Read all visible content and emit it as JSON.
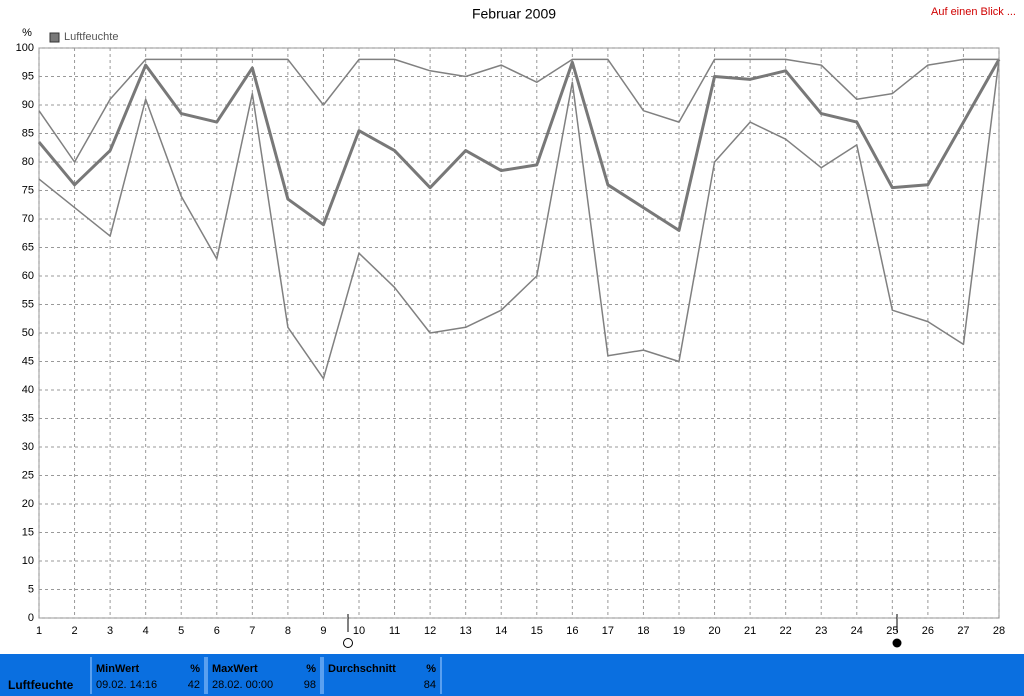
{
  "chart_data": {
    "type": "line",
    "title": "Februar 2009",
    "ylabel": "%",
    "x": [
      1,
      2,
      3,
      4,
      5,
      6,
      7,
      8,
      9,
      10,
      11,
      12,
      13,
      14,
      15,
      16,
      17,
      18,
      19,
      20,
      21,
      22,
      23,
      24,
      25,
      26,
      27,
      28
    ],
    "series": [
      {
        "name": "Luftfeuchte",
        "color": "#787878",
        "width": 3,
        "values": [
          83.5,
          76,
          82,
          97,
          88.5,
          87,
          96.5,
          73.5,
          69,
          85.5,
          82,
          75.5,
          82,
          78.5,
          79.5,
          97.5,
          76,
          72,
          68,
          95,
          94.5,
          96,
          88.5,
          87,
          75.5,
          76,
          87,
          98
        ]
      },
      {
        "color": "#808080",
        "width": 1.5,
        "values": [
          89,
          80,
          91,
          98,
          98,
          98,
          98,
          98,
          90,
          98,
          98,
          96,
          95,
          97,
          94,
          98,
          98,
          89,
          87,
          98,
          98,
          98,
          97,
          91,
          92,
          97,
          98,
          98
        ]
      },
      {
        "color": "#808080",
        "width": 1.5,
        "values": [
          77,
          72,
          67,
          91,
          74,
          63,
          92,
          51,
          42,
          64,
          58,
          50,
          51,
          54,
          60,
          94,
          46,
          47,
          45,
          80,
          87,
          84,
          79,
          83,
          54,
          52,
          48,
          98
        ]
      }
    ],
    "xlim": [
      1,
      28
    ],
    "xticks": [
      1,
      2,
      3,
      4,
      5,
      6,
      7,
      8,
      9,
      10,
      11,
      12,
      13,
      14,
      15,
      16,
      17,
      18,
      19,
      20,
      21,
      22,
      23,
      24,
      25,
      26,
      27,
      28
    ],
    "ylim": [
      0,
      100
    ],
    "yticks": [
      0,
      5,
      10,
      15,
      20,
      25,
      30,
      35,
      40,
      45,
      50,
      55,
      60,
      65,
      70,
      75,
      80,
      85,
      90,
      95,
      100
    ],
    "grid": true,
    "legend": "top-left"
  },
  "header_link": "Auf einen Blick ...",
  "summary": {
    "label": "Luftfeuchte",
    "cells": [
      {
        "title": "MinWert",
        "unit": "%",
        "time": "09.02. 14:16",
        "value": 42
      },
      {
        "title": "MaxWert",
        "unit": "%",
        "time": "28.02. 00:00",
        "value": 98
      },
      {
        "title": "Durchschnitt",
        "unit": "%",
        "value": 84
      }
    ]
  }
}
